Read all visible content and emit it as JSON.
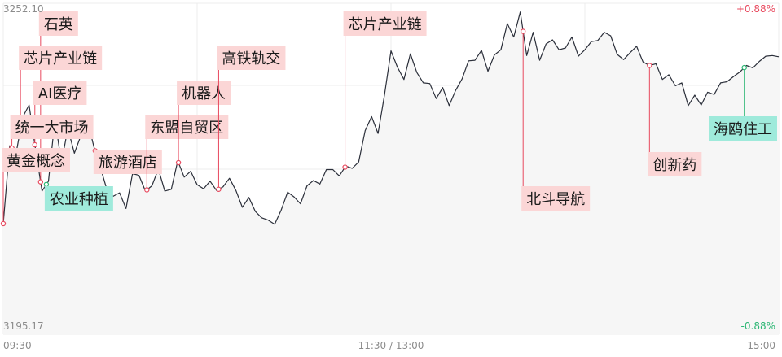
{
  "chart_data": {
    "type": "line",
    "y_range": [
      3195.17,
      3252.1
    ],
    "y_max_label": "3252.10",
    "y_min_label": "3195.17",
    "pct_max_label": "+0.88%",
    "pct_min_label": "-0.88%",
    "x_labels": {
      "start": "09:30",
      "mid": "11:30 / 13:00",
      "end": "15:00"
    },
    "colors": {
      "line": "#2b2f3a",
      "up": "#e84a5f",
      "down": "#2bb673",
      "tag_red_bg": "#fbd6d6",
      "tag_green_bg": "#9feadb",
      "grid": "#ececec"
    },
    "minutes": 240,
    "x": [
      0,
      2,
      4,
      6,
      8,
      10,
      12,
      14,
      16,
      18,
      20,
      22,
      24,
      26,
      28,
      30,
      32,
      34,
      36,
      38,
      40,
      42,
      44,
      46,
      48,
      50,
      52,
      54,
      56,
      58,
      60,
      62,
      64,
      66,
      68,
      70,
      72,
      74,
      76,
      78,
      80,
      82,
      84,
      86,
      88,
      90,
      92,
      94,
      96,
      98,
      100,
      102,
      104,
      106,
      108,
      110,
      112,
      114,
      116,
      118,
      120,
      122,
      124,
      126,
      128,
      130,
      132,
      134,
      136,
      138,
      140,
      142,
      144,
      146,
      148,
      150,
      152,
      154,
      156,
      158,
      160,
      162,
      164,
      166,
      168,
      170,
      172,
      174,
      176,
      178,
      180,
      182,
      184,
      186,
      188,
      190,
      192,
      194,
      196,
      198,
      200,
      202,
      204,
      206,
      208,
      210,
      212,
      214,
      216,
      218,
      220,
      222,
      224,
      226,
      228,
      230,
      232,
      234,
      236,
      238,
      240
    ],
    "y": [
      3214.2,
      3227.6,
      3226.4,
      3232.5,
      3234.6,
      3226.9,
      3219.8,
      3221.5,
      3232.2,
      3224.6,
      3230.6,
      3226.3,
      3229.3,
      3232.1,
      3227.5,
      3224.0,
      3220.2,
      3218.9,
      3219.5,
      3216.8,
      3222.8,
      3222.5,
      3219.8,
      3220.7,
      3223.6,
      3219.8,
      3220.1,
      3225.0,
      3222.2,
      3223.2,
      3220.9,
      3220.2,
      3221.5,
      3219.9,
      3220.5,
      3222.0,
      3219.9,
      3217.0,
      3218.7,
      3216.3,
      3215.2,
      3214.8,
      3214.1,
      3216.5,
      3219.6,
      3218.8,
      3217.6,
      3220.7,
      3221.6,
      3221.0,
      3223.5,
      3223.5,
      3222.4,
      3224.1,
      3223.7,
      3224.8,
      3230.2,
      3232.6,
      3229.7,
      3236.4,
      3243.9,
      3241.1,
      3239.0,
      3243.4,
      3240.2,
      3238.4,
      3238.3,
      3235.7,
      3237.6,
      3234.5,
      3237.1,
      3239.1,
      3242.2,
      3242.3,
      3244.0,
      3240.4,
      3243.2,
      3244.1,
      3248.6,
      3246.3,
      3250.6,
      3243.1,
      3247.1,
      3242.3,
      3245.1,
      3245.8,
      3244.1,
      3244.4,
      3246.3,
      3243.0,
      3244.1,
      3245.5,
      3245.7,
      3247.1,
      3246.5,
      3243.3,
      3242.4,
      3243.6,
      3244.7,
      3242.0,
      3241.4,
      3241.7,
      3239.0,
      3239.8,
      3237.9,
      3238.4,
      3234.5,
      3236.3,
      3234.6,
      3236.8,
      3236.4,
      3238.4,
      3238.6,
      3239.5,
      3240.3,
      3241.4,
      3241.0,
      3242.1,
      3243.0,
      3243.1,
      3242.9
    ],
    "annotations": [
      {
        "label": "石英",
        "minute": 26,
        "direction": "up",
        "color": "red"
      },
      {
        "label": "芯片产业链",
        "minute": 12,
        "direction": "up",
        "color": "red"
      },
      {
        "label": "AI医疗",
        "minute": 22,
        "direction": "up",
        "color": "red"
      },
      {
        "label": "统一大市场",
        "minute": 6,
        "direction": "up",
        "color": "red"
      },
      {
        "label": "黄金概念",
        "minute": 0,
        "direction": "up",
        "color": "red"
      },
      {
        "label": "农业种植",
        "minute": 30,
        "direction": "up",
        "color": "green"
      },
      {
        "label": "旅游酒店",
        "minute": 64,
        "direction": "up",
        "color": "red"
      },
      {
        "label": "东盟自贸区",
        "minute": 100,
        "direction": "up",
        "color": "red"
      },
      {
        "label": "机器人",
        "minute": 122,
        "direction": "up",
        "color": "red"
      },
      {
        "label": "高铁轨交",
        "minute": 150,
        "direction": "up",
        "color": "red"
      },
      {
        "label": "芯片产业链",
        "minute": 238,
        "direction": "up",
        "color": "red"
      },
      {
        "label": "北斗导航",
        "minute": 362,
        "direction": "down",
        "color": "red"
      },
      {
        "label": "创新药",
        "minute": 450,
        "direction": "down",
        "color": "red"
      },
      {
        "label": "海鸥住工",
        "minute": 516,
        "direction": "down",
        "color": "green"
      }
    ]
  }
}
